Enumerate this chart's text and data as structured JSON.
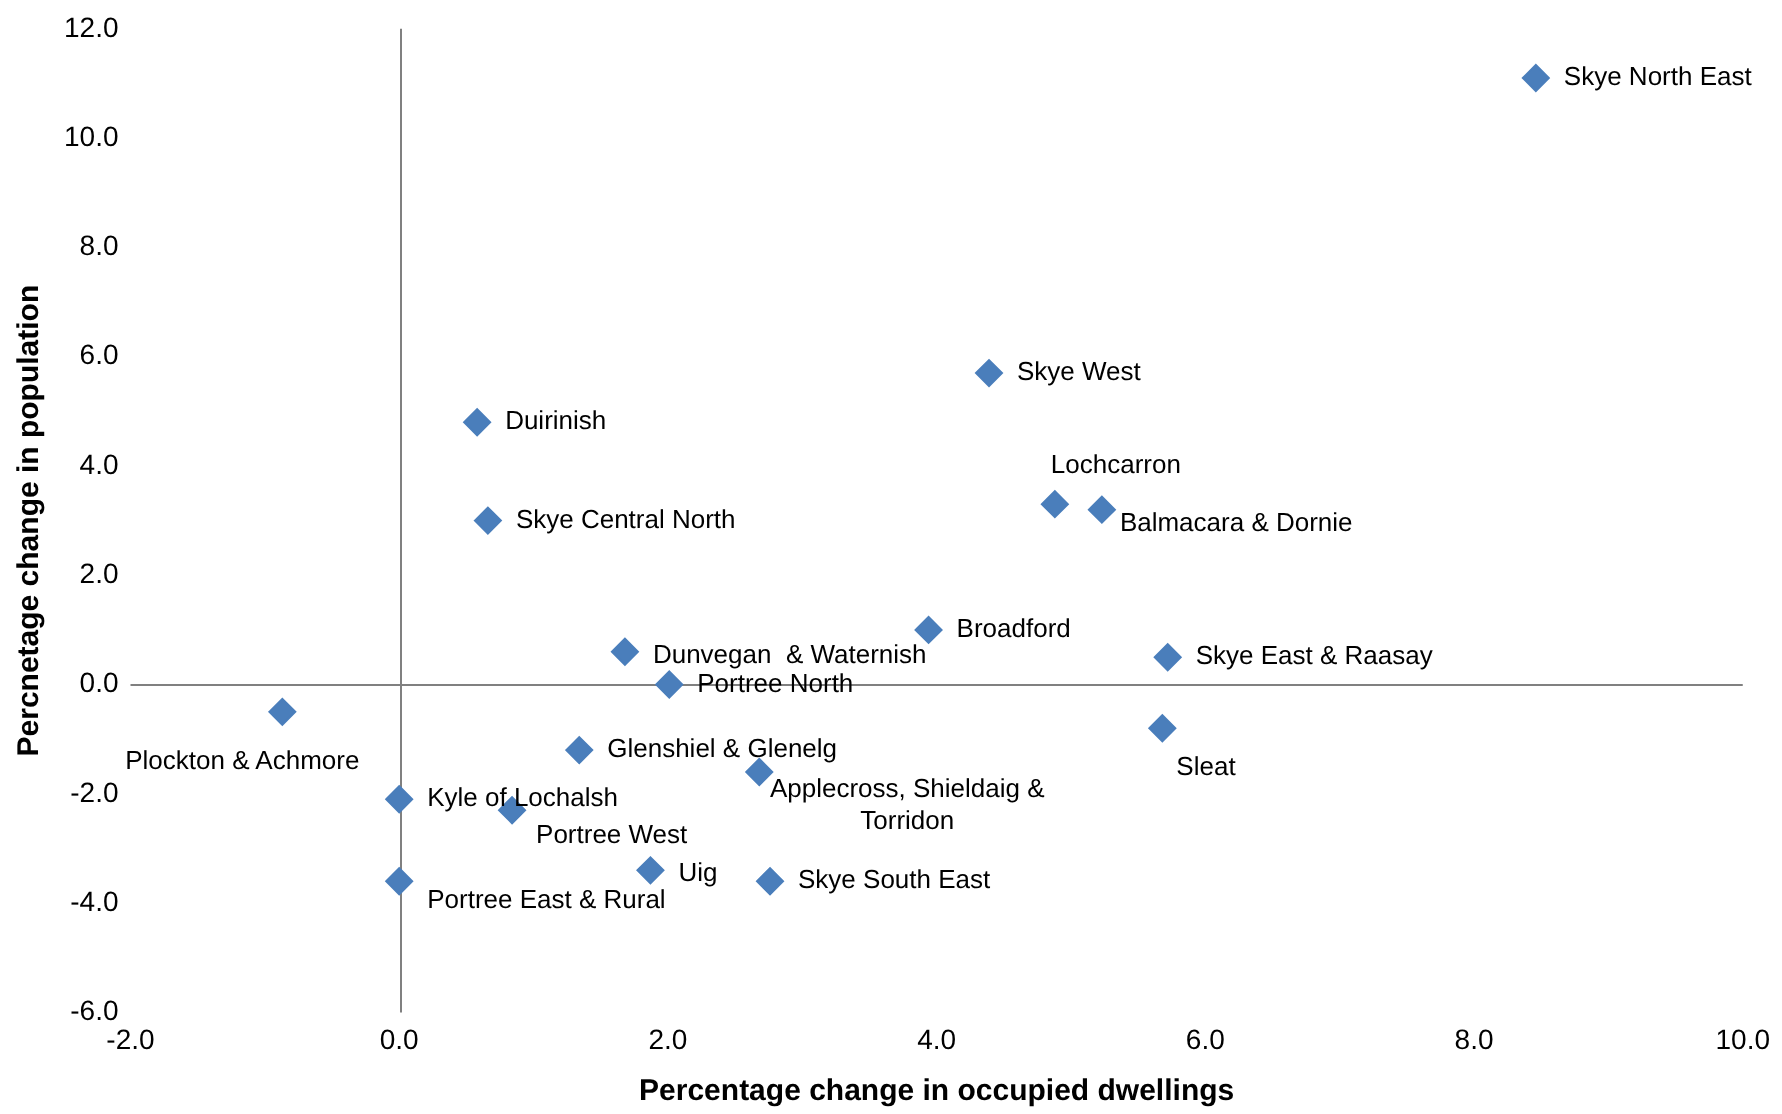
{
  "chart_data": {
    "type": "scatter",
    "xlabel": "Percentage change in occupied dwellings",
    "ylabel": "Percnetage change in population",
    "marker": "diamond",
    "legend": false,
    "x": [
      8.46,
      4.39,
      0.58,
      0.66,
      4.88,
      5.23,
      3.94,
      5.72,
      1.68,
      2.01,
      -0.87,
      5.68,
      1.34,
      2.68,
      0.0,
      0.84,
      1.87,
      2.76,
      0.0
    ],
    "series": [
      {
        "color": "#4a7ebb",
        "values": [
          11.1,
          5.7,
          4.8,
          3.0,
          3.3,
          3.2,
          1.0,
          0.5,
          0.6,
          0.0,
          -0.5,
          -0.8,
          -1.2,
          -1.6,
          -2.1,
          -2.3,
          -3.4,
          -3.6,
          -3.6
        ]
      }
    ],
    "xlim": [
      -2,
      10
    ],
    "ylim": [
      -6,
      12
    ],
    "xticks": [
      {
        "value": -2,
        "label": "-2.0"
      },
      {
        "value": 0,
        "label": "0.0"
      },
      {
        "value": 2,
        "label": "2.0"
      },
      {
        "value": 4,
        "label": "4.0"
      },
      {
        "value": 6,
        "label": "6.0"
      },
      {
        "value": 8,
        "label": "8.0"
      },
      {
        "value": 10,
        "label": "10.0"
      }
    ],
    "yticks": [
      {
        "value": -6,
        "label": "-6.0"
      },
      {
        "value": -4,
        "label": "-4.0"
      },
      {
        "value": -2,
        "label": "-2.0"
      },
      {
        "value": 0,
        "label": "0.0"
      },
      {
        "value": 2,
        "label": "2.0"
      },
      {
        "value": 4,
        "label": "4.0"
      },
      {
        "value": 6,
        "label": "6.0"
      },
      {
        "value": 8,
        "label": "8.0"
      },
      {
        "value": 10,
        "label": "10.0"
      },
      {
        "value": 12,
        "label": "12.0"
      }
    ],
    "annotations": [
      {
        "text": "Skye North East",
        "x": 8.46,
        "y": 11.1
      },
      {
        "text": "Skye West",
        "x": 4.39,
        "y": 5.7
      },
      {
        "text": "Duirinish",
        "x": 0.58,
        "y": 4.8
      },
      {
        "text": "Skye Central North",
        "x": 0.66,
        "y": 3.0
      },
      {
        "text": "Lochcarron",
        "x": 4.88,
        "y": 3.3
      },
      {
        "text": "Balmacara & Dornie",
        "x": 5.23,
        "y": 3.2
      },
      {
        "text": "Broadford",
        "x": 3.94,
        "y": 1.0
      },
      {
        "text": "Skye East & Raasay",
        "x": 5.72,
        "y": 0.5
      },
      {
        "text": "Dunvegan  & Waternish",
        "x": 1.68,
        "y": 0.6
      },
      {
        "text": "Portree North",
        "x": 2.01,
        "y": 0.0
      },
      {
        "text": "Plockton & Achmore",
        "x": -0.87,
        "y": -0.5
      },
      {
        "text": "Sleat",
        "x": 5.68,
        "y": -0.8
      },
      {
        "text": "Glenshiel & Glenelg",
        "x": 1.34,
        "y": -1.2
      },
      {
        "text": "Applecross, Shieldaig & Torridon",
        "x": 2.68,
        "y": -1.6
      },
      {
        "text": "Kyle of Lochalsh",
        "x": 0.0,
        "y": -2.1
      },
      {
        "text": "Portree West",
        "x": 0.84,
        "y": -2.3
      },
      {
        "text": "Uig",
        "x": 1.87,
        "y": -3.4
      },
      {
        "text": "Skye South East",
        "x": 2.76,
        "y": -3.6
      },
      {
        "text": "Portree East & Rural",
        "x": 0.0,
        "y": -3.6
      }
    ]
  }
}
